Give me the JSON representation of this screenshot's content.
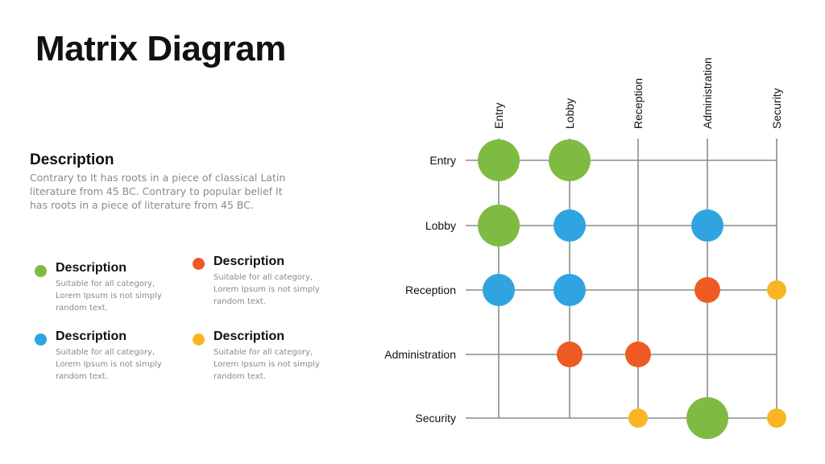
{
  "title": "Matrix Diagram",
  "description": {
    "heading": "Description",
    "body": "Contrary to It has roots in a piece of classical Latin literature from 45 BC. Contrary to popular belief It has roots in a piece of literature from 45 BC."
  },
  "legend": [
    {
      "title": "Description",
      "text": "Suitable for all category, Lorem Ipsum is not simply random text.",
      "color": "#7fbb42"
    },
    {
      "title": "Description",
      "text": "Suitable for all category, Lorem Ipsum is not simply random text.",
      "color": "#ee5a24"
    },
    {
      "title": "Description",
      "text": "Suitable for all category, Lorem Ipsum is not simply random text.",
      "color": "#2fa4e0"
    },
    {
      "title": "Description",
      "text": "Suitable for all category, Lorem Ipsum is not simply random text.",
      "color": "#fbb524"
    }
  ],
  "matrix": {
    "rows": [
      "Entry",
      "Lobby",
      "Reception",
      "Administration",
      "Security"
    ],
    "columns": [
      "Entry",
      "Lobby",
      "Reception",
      "Administration",
      "Security"
    ],
    "colors": {
      "green": "#7fbb42",
      "blue": "#2fa4e0",
      "orange": "#ee5a24",
      "yellow": "#fbb524"
    },
    "cells": [
      {
        "row": 0,
        "col": 0,
        "color": "green",
        "size": "large"
      },
      {
        "row": 0,
        "col": 1,
        "color": "green",
        "size": "large"
      },
      {
        "row": 1,
        "col": 0,
        "color": "green",
        "size": "large"
      },
      {
        "row": 1,
        "col": 1,
        "color": "blue",
        "size": "medium"
      },
      {
        "row": 1,
        "col": 3,
        "color": "blue",
        "size": "medium"
      },
      {
        "row": 2,
        "col": 0,
        "color": "blue",
        "size": "medium"
      },
      {
        "row": 2,
        "col": 1,
        "color": "blue",
        "size": "medium"
      },
      {
        "row": 2,
        "col": 3,
        "color": "orange",
        "size": "small"
      },
      {
        "row": 2,
        "col": 4,
        "color": "yellow",
        "size": "xsmall"
      },
      {
        "row": 3,
        "col": 1,
        "color": "orange",
        "size": "small"
      },
      {
        "row": 3,
        "col": 2,
        "color": "orange",
        "size": "small"
      },
      {
        "row": 4,
        "col": 2,
        "color": "yellow",
        "size": "xsmall"
      },
      {
        "row": 4,
        "col": 3,
        "color": "green",
        "size": "large"
      },
      {
        "row": 4,
        "col": 4,
        "color": "yellow",
        "size": "xsmall"
      }
    ]
  }
}
